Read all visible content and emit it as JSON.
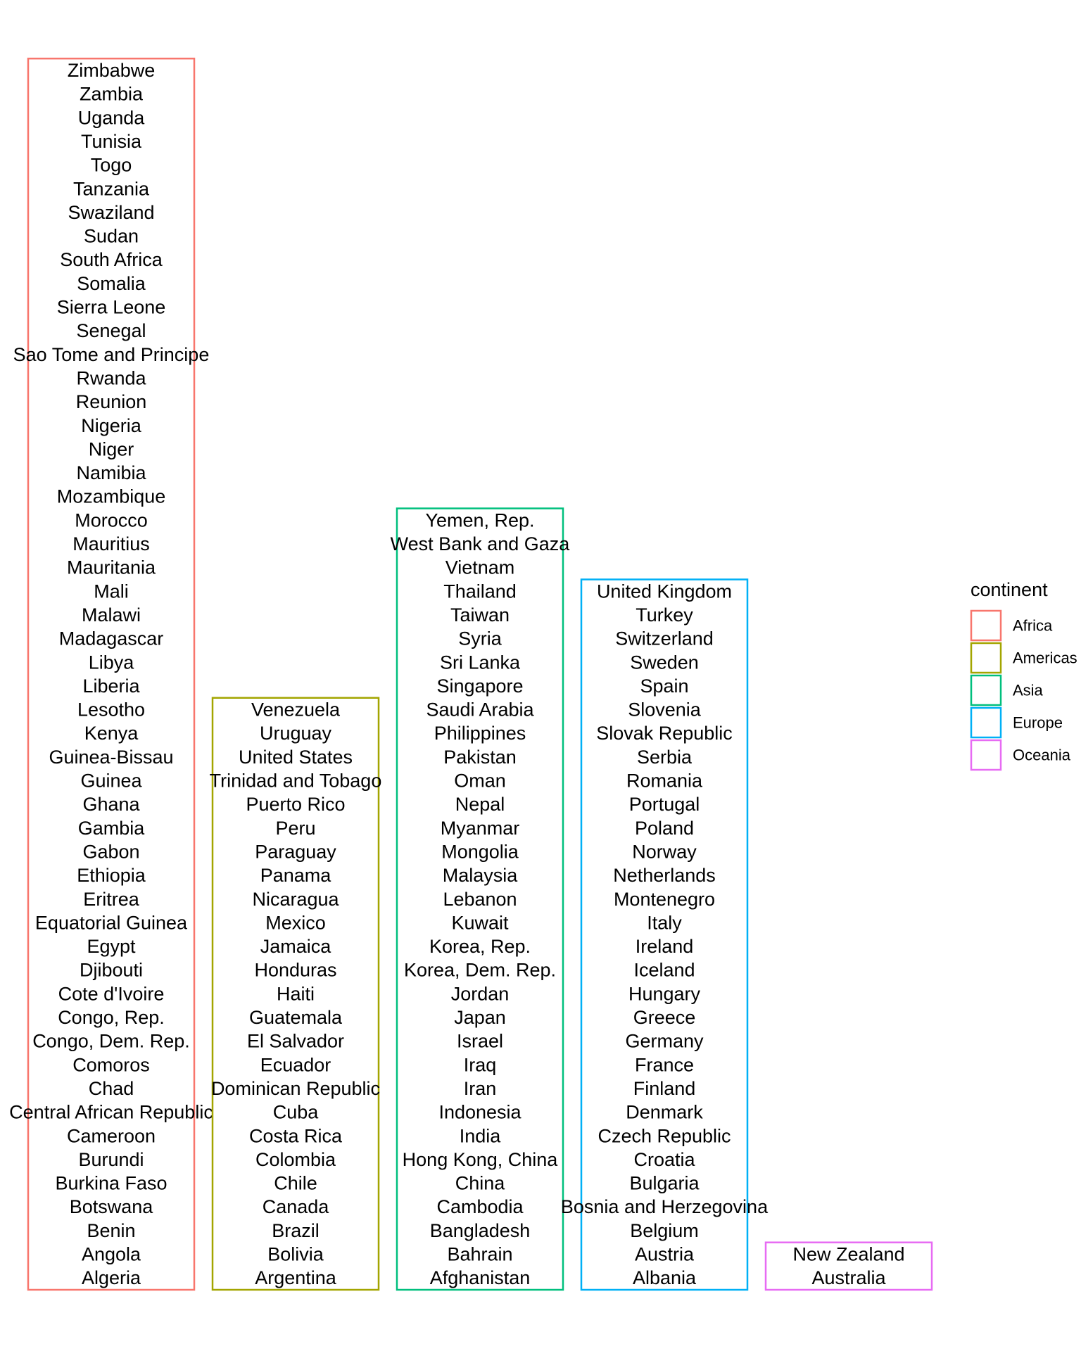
{
  "chart_data": {
    "type": "bar",
    "title": "",
    "xlabel": "",
    "ylabel": "",
    "legend": {
      "title": "continent",
      "placement": "right"
    },
    "series": [
      {
        "name": "Africa",
        "color": "#F8766D",
        "values": [
          "Algeria",
          "Angola",
          "Benin",
          "Botswana",
          "Burkina Faso",
          "Burundi",
          "Cameroon",
          "Central African Republic",
          "Chad",
          "Comoros",
          "Congo, Dem. Rep.",
          "Congo, Rep.",
          "Cote d'Ivoire",
          "Djibouti",
          "Egypt",
          "Equatorial Guinea",
          "Eritrea",
          "Ethiopia",
          "Gabon",
          "Gambia",
          "Ghana",
          "Guinea",
          "Guinea-Bissau",
          "Kenya",
          "Lesotho",
          "Liberia",
          "Libya",
          "Madagascar",
          "Malawi",
          "Mali",
          "Mauritania",
          "Mauritius",
          "Morocco",
          "Mozambique",
          "Namibia",
          "Niger",
          "Nigeria",
          "Reunion",
          "Rwanda",
          "Sao Tome and Principe",
          "Senegal",
          "Sierra Leone",
          "Somalia",
          "South Africa",
          "Sudan",
          "Swaziland",
          "Tanzania",
          "Togo",
          "Tunisia",
          "Uganda",
          "Zambia",
          "Zimbabwe"
        ]
      },
      {
        "name": "Americas",
        "color": "#A3A500",
        "values": [
          "Argentina",
          "Bolivia",
          "Brazil",
          "Canada",
          "Chile",
          "Colombia",
          "Costa Rica",
          "Cuba",
          "Dominican Republic",
          "Ecuador",
          "El Salvador",
          "Guatemala",
          "Haiti",
          "Honduras",
          "Jamaica",
          "Mexico",
          "Nicaragua",
          "Panama",
          "Paraguay",
          "Peru",
          "Puerto Rico",
          "Trinidad and Tobago",
          "United States",
          "Uruguay",
          "Venezuela"
        ]
      },
      {
        "name": "Asia",
        "color": "#00BF7D",
        "values": [
          "Afghanistan",
          "Bahrain",
          "Bangladesh",
          "Cambodia",
          "China",
          "Hong Kong, China",
          "India",
          "Indonesia",
          "Iran",
          "Iraq",
          "Israel",
          "Japan",
          "Jordan",
          "Korea, Dem. Rep.",
          "Korea, Rep.",
          "Kuwait",
          "Lebanon",
          "Malaysia",
          "Mongolia",
          "Myanmar",
          "Nepal",
          "Oman",
          "Pakistan",
          "Philippines",
          "Saudi Arabia",
          "Singapore",
          "Sri Lanka",
          "Syria",
          "Taiwan",
          "Thailand",
          "Vietnam",
          "West Bank and Gaza",
          "Yemen, Rep."
        ]
      },
      {
        "name": "Europe",
        "color": "#00B0F6",
        "values": [
          "Albania",
          "Austria",
          "Belgium",
          "Bosnia and Herzegovina",
          "Bulgaria",
          "Croatia",
          "Czech Republic",
          "Denmark",
          "Finland",
          "France",
          "Germany",
          "Greece",
          "Hungary",
          "Iceland",
          "Ireland",
          "Italy",
          "Montenegro",
          "Netherlands",
          "Norway",
          "Poland",
          "Portugal",
          "Romania",
          "Serbia",
          "Slovak Republic",
          "Slovenia",
          "Spain",
          "Sweden",
          "Switzerland",
          "Turkey",
          "United Kingdom"
        ]
      },
      {
        "name": "Oceania",
        "color": "#E76BF3",
        "values": [
          "Australia",
          "New Zealand"
        ]
      }
    ]
  }
}
